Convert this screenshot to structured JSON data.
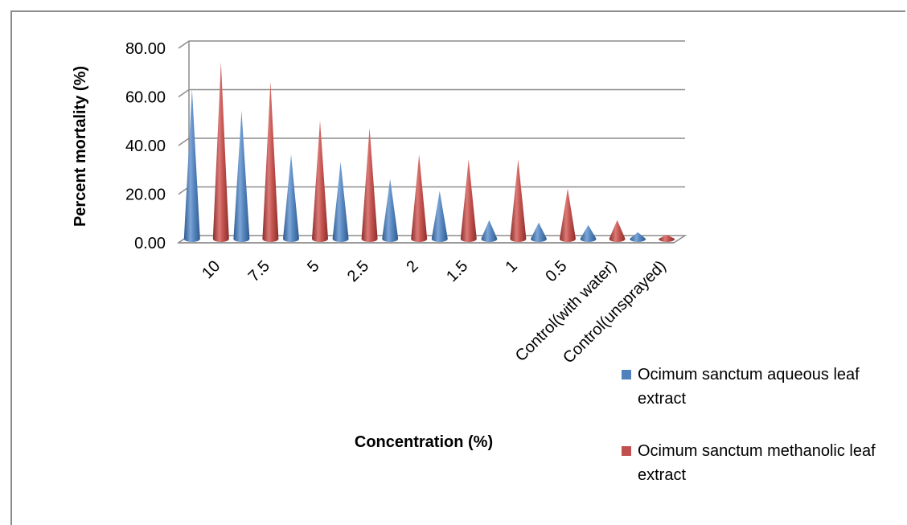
{
  "chart_data": {
    "type": "bar",
    "style": "3d-cone",
    "title": "",
    "xlabel": "Concentration (%)",
    "ylabel": "Percent mortality (%)",
    "ylim": [
      0,
      80
    ],
    "yticks": [
      "0.00",
      "20.00",
      "40.00",
      "60.00",
      "80.00"
    ],
    "grid": true,
    "legend_position": "right",
    "categories": [
      "10",
      "7.5",
      "5",
      "2.5",
      "2",
      "1.5",
      "1",
      "0.5",
      "Control(with water)",
      "Control(unsprayed)"
    ],
    "series": [
      {
        "name": "Ocimum sanctum aqueous leaf extract",
        "color": "#4f81bd",
        "values": [
          62,
          53,
          35,
          32,
          25,
          20,
          8,
          7,
          6,
          3
        ]
      },
      {
        "name": "Ocimum sanctum methanolic leaf extract",
        "color": "#c0504d",
        "values": [
          73,
          65,
          49,
          46,
          35,
          33,
          33,
          21,
          8,
          2
        ]
      }
    ]
  }
}
